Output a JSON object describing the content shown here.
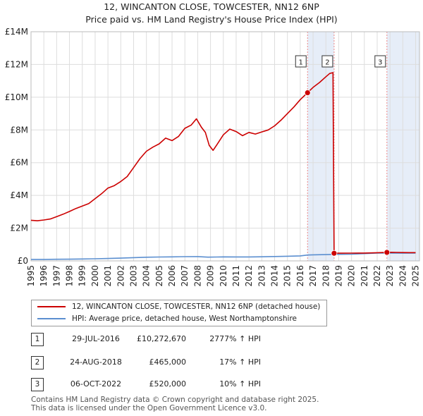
{
  "header": {
    "title": "12, WINCANTON CLOSE, TOWCESTER, NN12 6NP",
    "subtitle": "Price paid vs. HM Land Registry's House Price Index (HPI)"
  },
  "colors": {
    "property": "#cc0000",
    "hpi": "#5b8fd0",
    "shade": "#e6edf8",
    "vline": "#e88"
  },
  "chart_data": {
    "type": "line",
    "title": "12, WINCANTON CLOSE, TOWCESTER, NN12 6NP",
    "subtitle": "Price paid vs. HM Land Registry's House Price Index (HPI)",
    "xlabel": "",
    "ylabel": "",
    "xlim": [
      1995,
      2025.3
    ],
    "ylim": [
      0,
      14000000
    ],
    "x_ticks": [
      "1995",
      "1996",
      "1997",
      "1998",
      "1999",
      "2000",
      "2001",
      "2002",
      "2003",
      "2004",
      "2005",
      "2006",
      "2007",
      "2008",
      "2009",
      "2010",
      "2011",
      "2012",
      "2013",
      "2014",
      "2015",
      "2016",
      "2017",
      "2018",
      "2019",
      "2020",
      "2021",
      "2022",
      "2023",
      "2024",
      "2025"
    ],
    "y_ticks": [
      {
        "value": 0,
        "label": "£0"
      },
      {
        "value": 2000000,
        "label": "£2M"
      },
      {
        "value": 4000000,
        "label": "£4M"
      },
      {
        "value": 6000000,
        "label": "£6M"
      },
      {
        "value": 8000000,
        "label": "£8M"
      },
      {
        "value": 10000000,
        "label": "£10M"
      },
      {
        "value": 12000000,
        "label": "£12M"
      },
      {
        "value": 14000000,
        "label": "£14M"
      }
    ],
    "grid": true,
    "series": [
      {
        "name": "12, WINCANTON CLOSE, TOWCESTER, NN12 6NP (detached house)",
        "color": "#cc0000",
        "points": [
          [
            1995.0,
            2480000
          ],
          [
            1995.5,
            2450000
          ],
          [
            1996.0,
            2500000
          ],
          [
            1996.5,
            2560000
          ],
          [
            1997.0,
            2700000
          ],
          [
            1997.5,
            2850000
          ],
          [
            1998.0,
            3020000
          ],
          [
            1998.5,
            3200000
          ],
          [
            1999.0,
            3350000
          ],
          [
            1999.5,
            3500000
          ],
          [
            2000.0,
            3800000
          ],
          [
            2000.5,
            4100000
          ],
          [
            2001.0,
            4450000
          ],
          [
            2001.5,
            4600000
          ],
          [
            2002.0,
            4850000
          ],
          [
            2002.5,
            5150000
          ],
          [
            2003.0,
            5700000
          ],
          [
            2003.5,
            6250000
          ],
          [
            2004.0,
            6700000
          ],
          [
            2004.5,
            6950000
          ],
          [
            2005.0,
            7150000
          ],
          [
            2005.5,
            7500000
          ],
          [
            2006.0,
            7350000
          ],
          [
            2006.5,
            7600000
          ],
          [
            2007.0,
            8100000
          ],
          [
            2007.5,
            8300000
          ],
          [
            2007.9,
            8680000
          ],
          [
            2008.3,
            8150000
          ],
          [
            2008.6,
            7850000
          ],
          [
            2008.9,
            7050000
          ],
          [
            2009.2,
            6750000
          ],
          [
            2009.5,
            7100000
          ],
          [
            2010.0,
            7700000
          ],
          [
            2010.5,
            8050000
          ],
          [
            2011.0,
            7900000
          ],
          [
            2011.5,
            7650000
          ],
          [
            2012.0,
            7850000
          ],
          [
            2012.5,
            7750000
          ],
          [
            2013.0,
            7880000
          ],
          [
            2013.5,
            8000000
          ],
          [
            2014.0,
            8250000
          ],
          [
            2014.5,
            8600000
          ],
          [
            2015.0,
            9000000
          ],
          [
            2015.5,
            9400000
          ],
          [
            2016.0,
            9850000
          ],
          [
            2016.57,
            10272670
          ],
          [
            2017.0,
            10600000
          ],
          [
            2017.5,
            10900000
          ],
          [
            2018.0,
            11250000
          ],
          [
            2018.3,
            11450000
          ],
          [
            2018.55,
            11500000
          ],
          [
            2018.64,
            465000
          ],
          [
            2019.0,
            470000
          ],
          [
            2020.0,
            472000
          ],
          [
            2021.0,
            480000
          ],
          [
            2022.0,
            500000
          ],
          [
            2022.76,
            520000
          ],
          [
            2023.0,
            525000
          ],
          [
            2023.5,
            515000
          ],
          [
            2024.0,
            510000
          ],
          [
            2024.5,
            505000
          ],
          [
            2025.0,
            505000
          ]
        ]
      },
      {
        "name": "HPI: Average price, detached house, West Northamptonshire",
        "color": "#5b8fd0",
        "points": [
          [
            1995.0,
            90000
          ],
          [
            1996.0,
            92000
          ],
          [
            1997.0,
            98000
          ],
          [
            1998.0,
            105000
          ],
          [
            1999.0,
            115000
          ],
          [
            2000.0,
            130000
          ],
          [
            2001.0,
            145000
          ],
          [
            2002.0,
            170000
          ],
          [
            2003.0,
            200000
          ],
          [
            2004.0,
            225000
          ],
          [
            2005.0,
            235000
          ],
          [
            2006.0,
            245000
          ],
          [
            2007.0,
            260000
          ],
          [
            2008.0,
            262000
          ],
          [
            2008.8,
            230000
          ],
          [
            2009.5,
            235000
          ],
          [
            2010.0,
            245000
          ],
          [
            2011.0,
            240000
          ],
          [
            2012.0,
            242000
          ],
          [
            2013.0,
            250000
          ],
          [
            2014.0,
            265000
          ],
          [
            2015.0,
            285000
          ],
          [
            2016.0,
            305000
          ],
          [
            2016.57,
            357000
          ],
          [
            2017.0,
            370000
          ],
          [
            2018.0,
            385000
          ],
          [
            2018.64,
            398000
          ],
          [
            2019.0,
            400000
          ],
          [
            2020.0,
            410000
          ],
          [
            2021.0,
            445000
          ],
          [
            2022.0,
            480000
          ],
          [
            2022.76,
            473000
          ],
          [
            2023.0,
            480000
          ],
          [
            2024.0,
            470000
          ],
          [
            2025.0,
            475000
          ]
        ]
      }
    ],
    "sales": [
      {
        "label": "1",
        "x": 2016.57,
        "value": 10272670
      },
      {
        "label": "2",
        "x": 2018.64,
        "value": 465000
      },
      {
        "label": "3",
        "x": 2022.76,
        "value": 520000
      }
    ],
    "shaded_ranges": [
      [
        2016.57,
        2018.64
      ],
      [
        2022.76,
        2025.3
      ]
    ]
  },
  "legend": {
    "property_label": "12, WINCANTON CLOSE, TOWCESTER, NN12 6NP (detached house)",
    "hpi_label": "HPI: Average price, detached house, West Northamptonshire"
  },
  "sales_table": [
    {
      "num": "1",
      "date": "29-JUL-2016",
      "price": "£10,272,670",
      "hpi": "2777% ↑ HPI"
    },
    {
      "num": "2",
      "date": "24-AUG-2018",
      "price": "£465,000",
      "hpi": "17% ↑ HPI"
    },
    {
      "num": "3",
      "date": "06-OCT-2022",
      "price": "£520,000",
      "hpi": "10% ↑ HPI"
    }
  ],
  "footer": {
    "line1": "Contains HM Land Registry data © Crown copyright and database right 2025.",
    "line2": "This data is licensed under the Open Government Licence v3.0."
  }
}
